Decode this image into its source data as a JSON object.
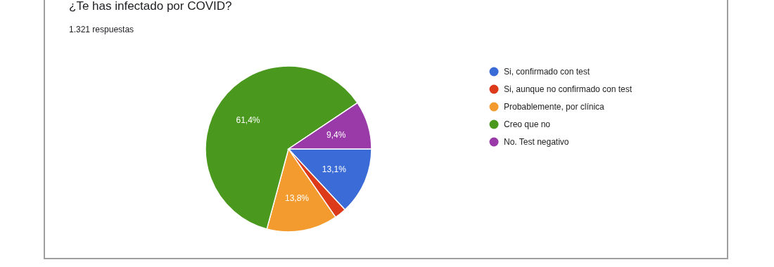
{
  "chart_data": {
    "type": "pie",
    "title": "¿Te has infectado por COVID?",
    "subtitle": "1.321 respuestas",
    "categories": [
      "Si, confirmado con test",
      "Si, aunque no confirmado con test",
      "Probablemente, por clínica",
      "Creo que no",
      "No. Test negativo"
    ],
    "values": [
      13.1,
      2.3,
      13.8,
      61.4,
      9.4
    ],
    "colors": [
      "#3b6bd6",
      "#dc3a1a",
      "#f49b2f",
      "#4a991e",
      "#9a3aa8"
    ],
    "value_labels": [
      "13,1%",
      null,
      "13,8%",
      "61,4%",
      "9,4%"
    ],
    "legend": "right"
  }
}
